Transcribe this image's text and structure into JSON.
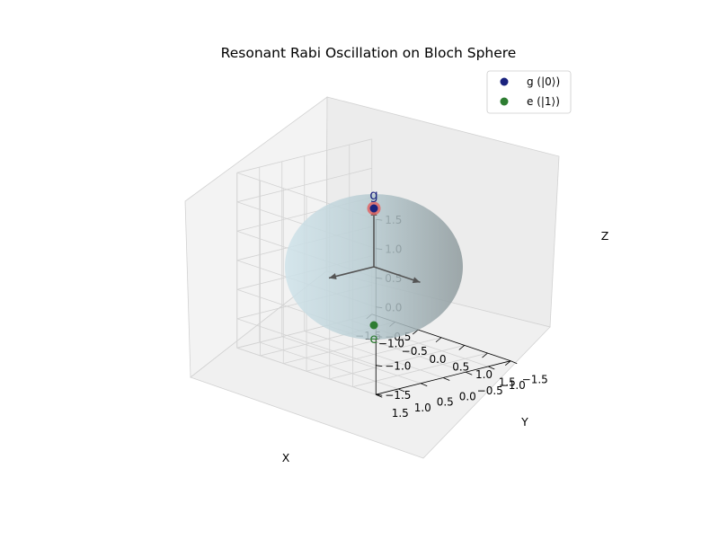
{
  "chart_data": {
    "type": "scatter",
    "projection": "3d",
    "title": "Resonant Rabi Oscillation on Bloch Sphere",
    "xlabel": "X",
    "ylabel": "Y",
    "zlabel": "Z",
    "xlim": [
      -1.5,
      1.5
    ],
    "ylim": [
      -1.5,
      1.5
    ],
    "zlim": [
      -1.5,
      1.5
    ],
    "x_ticks": [
      "−1.5",
      "−1.0",
      "−0.5",
      "0.0",
      "0.5",
      "1.0",
      "1.5"
    ],
    "y_ticks": [
      "−1.5",
      "−1.0",
      "−0.5",
      "0.0",
      "0.5",
      "1.0",
      "1.5"
    ],
    "z_ticks": [
      "−1.5",
      "−1.0",
      "−0.5",
      "0.0",
      "0.5",
      "1.0",
      "1.5"
    ],
    "grid": true,
    "legend_position": "top-right",
    "sphere": {
      "radius": 1,
      "color": "#add8e6"
    },
    "series": [
      {
        "name": "g (|0⟩)",
        "color": "#1a237e",
        "point": [
          0,
          0,
          1
        ],
        "label": "g"
      },
      {
        "name": "e (|1⟩)",
        "color": "#2e7d32",
        "point": [
          0,
          0,
          -1
        ],
        "label": "e"
      }
    ],
    "state_marker": {
      "point": [
        0,
        0,
        1
      ],
      "color": "#e06666"
    },
    "axes_arrows": [
      {
        "to": [
          1,
          0,
          0
        ]
      },
      {
        "to": [
          0,
          1,
          0
        ]
      },
      {
        "to": [
          0,
          0,
          1
        ]
      }
    ]
  }
}
